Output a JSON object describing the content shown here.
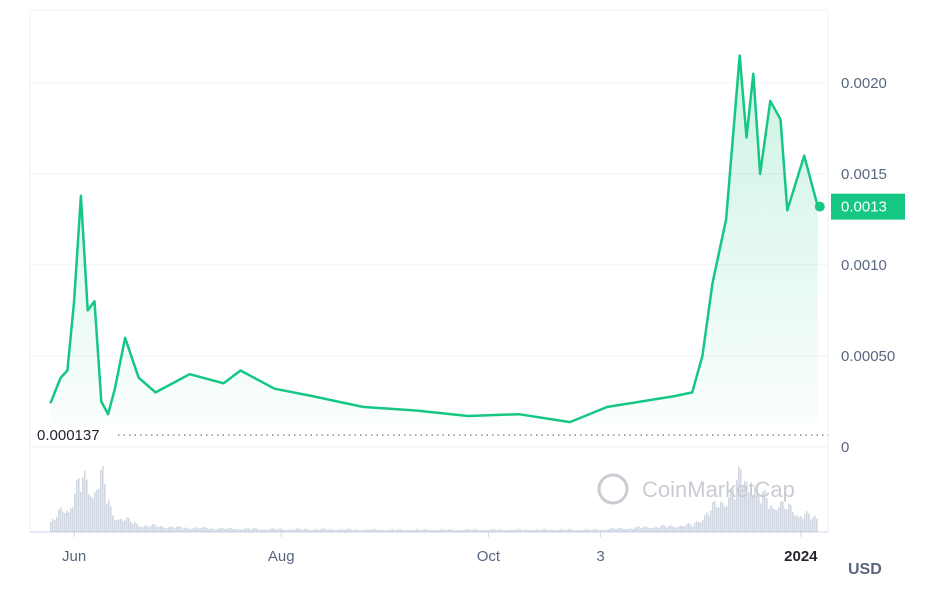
{
  "chart_data": {
    "type": "area",
    "unit_label": "USD",
    "watermark": "CoinMarketCap",
    "color": "#16c784",
    "y_axis": {
      "min": 0,
      "max": 0.0024,
      "ticks": [
        "0",
        "0.00050",
        "0.0010",
        "0.0015",
        "0.0020"
      ],
      "tick_values": [
        0,
        0.0005,
        0.001,
        0.0015,
        0.002
      ]
    },
    "x_ticks": [
      {
        "label": "Jun",
        "date": "2023-06-01",
        "bold": false
      },
      {
        "label": "Aug",
        "date": "2023-08-01",
        "bold": false
      },
      {
        "label": "Oct",
        "date": "2023-10-01",
        "bold": false
      },
      {
        "label": "3",
        "date": "2023-11-03",
        "bold": false
      },
      {
        "label": "2024",
        "date": "2024-01-01",
        "bold": true
      }
    ],
    "x_range": [
      "2023-05-19",
      "2024-01-09"
    ],
    "min_marker": {
      "label": "0.000137",
      "value": 0.000137
    },
    "current_price": {
      "label": "0.0013",
      "value": 0.00132
    },
    "series": [
      {
        "date": "2023-05-25",
        "price": 0.00024
      },
      {
        "date": "2023-05-28",
        "price": 0.00038
      },
      {
        "date": "2023-05-30",
        "price": 0.00042
      },
      {
        "date": "2023-06-01",
        "price": 0.0008
      },
      {
        "date": "2023-06-03",
        "price": 0.00138
      },
      {
        "date": "2023-06-05",
        "price": 0.00075
      },
      {
        "date": "2023-06-07",
        "price": 0.0008
      },
      {
        "date": "2023-06-09",
        "price": 0.00025
      },
      {
        "date": "2023-06-11",
        "price": 0.00018
      },
      {
        "date": "2023-06-13",
        "price": 0.00032
      },
      {
        "date": "2023-06-16",
        "price": 0.0006
      },
      {
        "date": "2023-06-20",
        "price": 0.00038
      },
      {
        "date": "2023-06-25",
        "price": 0.0003
      },
      {
        "date": "2023-07-05",
        "price": 0.0004
      },
      {
        "date": "2023-07-15",
        "price": 0.00035
      },
      {
        "date": "2023-07-20",
        "price": 0.00042
      },
      {
        "date": "2023-07-30",
        "price": 0.00032
      },
      {
        "date": "2023-08-10",
        "price": 0.00028
      },
      {
        "date": "2023-08-25",
        "price": 0.00022
      },
      {
        "date": "2023-09-10",
        "price": 0.0002
      },
      {
        "date": "2023-09-25",
        "price": 0.00017
      },
      {
        "date": "2023-10-10",
        "price": 0.00018
      },
      {
        "date": "2023-10-25",
        "price": 0.000137
      },
      {
        "date": "2023-11-05",
        "price": 0.00022
      },
      {
        "date": "2023-11-15",
        "price": 0.00025
      },
      {
        "date": "2023-11-25",
        "price": 0.00028
      },
      {
        "date": "2023-11-30",
        "price": 0.0003
      },
      {
        "date": "2023-12-03",
        "price": 0.0005
      },
      {
        "date": "2023-12-06",
        "price": 0.0009
      },
      {
        "date": "2023-12-10",
        "price": 0.00125
      },
      {
        "date": "2023-12-14",
        "price": 0.00215
      },
      {
        "date": "2023-12-16",
        "price": 0.0017
      },
      {
        "date": "2023-12-18",
        "price": 0.00205
      },
      {
        "date": "2023-12-20",
        "price": 0.0015
      },
      {
        "date": "2023-12-23",
        "price": 0.0019
      },
      {
        "date": "2023-12-26",
        "price": 0.0018
      },
      {
        "date": "2023-12-28",
        "price": 0.0013
      },
      {
        "date": "2024-01-02",
        "price": 0.0016
      },
      {
        "date": "2024-01-06",
        "price": 0.00132
      }
    ],
    "volume": [
      {
        "date": "2023-05-25",
        "v": 0.15
      },
      {
        "date": "2023-05-28",
        "v": 0.35
      },
      {
        "date": "2023-05-31",
        "v": 0.5
      },
      {
        "date": "2023-06-03",
        "v": 0.9
      },
      {
        "date": "2023-06-06",
        "v": 0.75
      },
      {
        "date": "2023-06-09",
        "v": 0.95
      },
      {
        "date": "2023-06-12",
        "v": 0.3
      },
      {
        "date": "2023-06-20",
        "v": 0.12
      },
      {
        "date": "2023-07-01",
        "v": 0.08
      },
      {
        "date": "2023-07-15",
        "v": 0.06
      },
      {
        "date": "2023-08-01",
        "v": 0.05
      },
      {
        "date": "2023-09-01",
        "v": 0.04
      },
      {
        "date": "2023-10-01",
        "v": 0.04
      },
      {
        "date": "2023-11-01",
        "v": 0.04
      },
      {
        "date": "2023-11-30",
        "v": 0.12
      },
      {
        "date": "2023-12-06",
        "v": 0.4
      },
      {
        "date": "2023-12-12",
        "v": 0.7
      },
      {
        "date": "2023-12-15",
        "v": 1.0
      },
      {
        "date": "2023-12-20",
        "v": 0.6
      },
      {
        "date": "2023-12-26",
        "v": 0.45
      },
      {
        "date": "2024-01-02",
        "v": 0.3
      },
      {
        "date": "2024-01-06",
        "v": 0.2
      }
    ]
  }
}
